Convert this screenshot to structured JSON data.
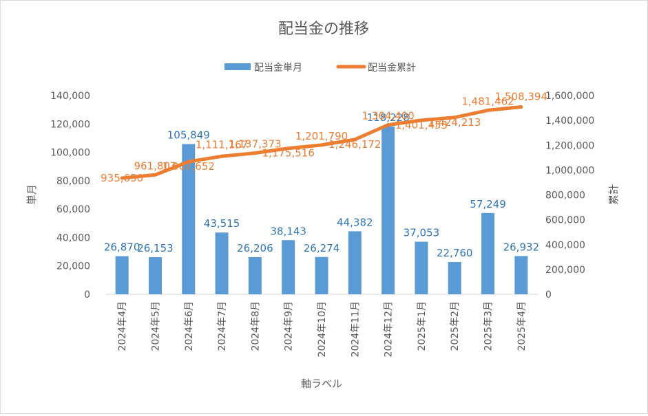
{
  "chart_data": {
    "type": "bar",
    "title": "配当金の推移",
    "xlabel": "軸ラベル",
    "ylabel": "単月",
    "y2label": "累計",
    "categories": [
      "2024年4月",
      "2024年5月",
      "2024年6月",
      "2024年7月",
      "2024年8月",
      "2024年9月",
      "2024年10月",
      "2024年11月",
      "2024年12月",
      "2025年1月",
      "2025年2月",
      "2025年3月",
      "2025年4月"
    ],
    "ylim": [
      0,
      140000
    ],
    "y2lim": [
      0,
      1600000
    ],
    "y_ticks": [
      "0",
      "20,000",
      "40,000",
      "60,000",
      "80,000",
      "100,000",
      "120,000",
      "140,000"
    ],
    "y2_ticks": [
      "0",
      "200,000",
      "400,000",
      "600,000",
      "800,000",
      "1,000,000",
      "1,200,000",
      "1,400,000",
      "1,600,000"
    ],
    "legend_position": "top",
    "grid": false,
    "series": [
      {
        "name": "配当金単月",
        "type": "bar",
        "axis": "left",
        "color": "#5B9BD5",
        "label_color": "#2E75B6",
        "values": [
          26870,
          26153,
          105849,
          43515,
          26206,
          38143,
          26274,
          44382,
          118228,
          37053,
          22760,
          57249,
          26932
        ],
        "labels": [
          "26,870",
          "26,153",
          "105,849",
          "43,515",
          "26,206",
          "38,143",
          "26,274",
          "44,382",
          "118,228",
          "37,053",
          "22,760",
          "57,249",
          "26,932"
        ]
      },
      {
        "name": "配当金累計",
        "type": "line",
        "axis": "right",
        "color": "#ED7D31",
        "label_color": "#ED7D31",
        "values": [
          935650,
          961803,
          1067652,
          1111167,
          1137373,
          1175516,
          1201790,
          1246172,
          1364400,
          1401453,
          1424213,
          1481462,
          1508394
        ],
        "labels": [
          "935,650",
          "961,803",
          "1,067,652",
          "1,111,167",
          "1,137,373",
          "1,175,516",
          "1,201,790",
          "1,246,172",
          "1,364,400",
          "1,401,453",
          "1,424,213",
          "1,481,462",
          "1,508,394"
        ]
      }
    ]
  }
}
